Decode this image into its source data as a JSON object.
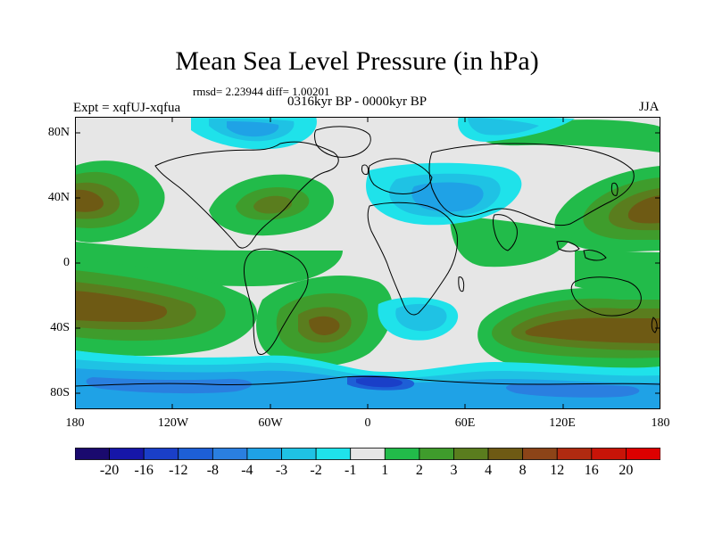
{
  "title": "Mean Sea Level Pressure (in hPa)",
  "stats": "rmsd= 2.23944 diff= 1.00201",
  "experiment": "Expt = xqfUJ-xqfua",
  "period": "0316kyr BP - 0000kyr BP",
  "season": "JJA",
  "axes": {
    "y_ticks": [
      "80N",
      "40N",
      "0",
      "40S",
      "80S"
    ],
    "x_ticks": [
      "180",
      "120W",
      "60W",
      "0",
      "60E",
      "120E",
      "180"
    ]
  },
  "colorbar": {
    "labels": [
      "-20",
      "-16",
      "-12",
      "-8",
      "-4",
      "-3",
      "-2",
      "-1",
      "1",
      "2",
      "3",
      "4",
      "8",
      "12",
      "16",
      "20"
    ],
    "colors": [
      "#1a0a6e",
      "#1616a8",
      "#1a3fc8",
      "#1d5fd6",
      "#2a7fe0",
      "#1fa2e6",
      "#1fc2e4",
      "#1fe2ea",
      "#e6e6e6",
      "#22bb4a",
      "#3f9c2c",
      "#5a7d1e",
      "#6e5a14",
      "#8c4418",
      "#b02a10",
      "#c81408",
      "#dd0000"
    ]
  },
  "colors": {
    "land_outline": "#000000",
    "background": "#e6e6e6"
  }
}
